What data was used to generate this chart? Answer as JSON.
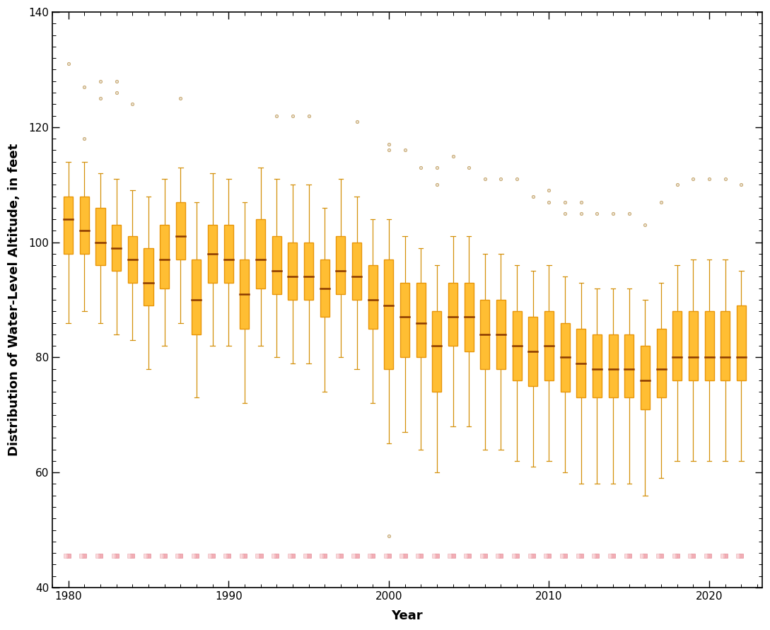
{
  "years": [
    1980,
    1981,
    1982,
    1983,
    1984,
    1985,
    1986,
    1987,
    1988,
    1989,
    1990,
    1991,
    1992,
    1993,
    1994,
    1995,
    1996,
    1997,
    1998,
    1999,
    2000,
    2001,
    2002,
    2003,
    2004,
    2005,
    2006,
    2007,
    2008,
    2009,
    2010,
    2011,
    2012,
    2013,
    2014,
    2015,
    2016,
    2017,
    2018,
    2019,
    2020,
    2021,
    2022
  ],
  "medians": [
    104,
    102,
    100,
    99,
    97,
    93,
    97,
    101,
    90,
    98,
    97,
    91,
    97,
    95,
    94,
    94,
    92,
    95,
    94,
    90,
    89,
    87,
    86,
    82,
    87,
    87,
    84,
    84,
    82,
    81,
    82,
    80,
    79,
    78,
    78,
    78,
    76,
    78,
    80,
    80,
    80,
    80,
    80
  ],
  "q1": [
    98,
    98,
    96,
    95,
    93,
    89,
    92,
    97,
    84,
    93,
    93,
    85,
    92,
    91,
    90,
    90,
    87,
    91,
    90,
    85,
    78,
    80,
    80,
    74,
    82,
    81,
    78,
    78,
    76,
    75,
    76,
    74,
    73,
    73,
    73,
    73,
    71,
    73,
    76,
    76,
    76,
    76,
    76
  ],
  "q3": [
    108,
    108,
    106,
    103,
    101,
    99,
    103,
    107,
    97,
    103,
    103,
    97,
    104,
    101,
    100,
    100,
    97,
    101,
    100,
    96,
    97,
    93,
    93,
    88,
    93,
    93,
    90,
    90,
    88,
    87,
    88,
    86,
    85,
    84,
    84,
    84,
    82,
    85,
    88,
    88,
    88,
    88,
    89
  ],
  "whisker_low": [
    86,
    88,
    86,
    84,
    83,
    78,
    82,
    86,
    73,
    82,
    82,
    72,
    82,
    80,
    79,
    79,
    74,
    80,
    78,
    72,
    65,
    67,
    64,
    60,
    68,
    68,
    64,
    64,
    62,
    61,
    62,
    60,
    58,
    58,
    58,
    58,
    56,
    59,
    62,
    62,
    62,
    62,
    62
  ],
  "whisker_high": [
    114,
    114,
    112,
    111,
    109,
    108,
    111,
    113,
    107,
    112,
    111,
    107,
    113,
    111,
    110,
    110,
    106,
    111,
    108,
    104,
    104,
    101,
    99,
    96,
    101,
    101,
    98,
    98,
    96,
    95,
    96,
    94,
    93,
    92,
    92,
    92,
    90,
    93,
    96,
    97,
    97,
    97,
    95
  ],
  "fliers_high": [
    [
      131
    ],
    [
      118,
      127
    ],
    [
      125,
      128
    ],
    [
      126,
      128
    ],
    [
      124
    ],
    [],
    [],
    [
      125
    ],
    [],
    [],
    [],
    [],
    [],
    [
      122
    ],
    [
      122
    ],
    [
      122
    ],
    [],
    [],
    [
      121
    ],
    [],
    [
      116,
      117
    ],
    [
      116
    ],
    [
      113
    ],
    [
      110,
      113
    ],
    [
      115
    ],
    [
      113
    ],
    [
      111
    ],
    [
      111
    ],
    [
      111
    ],
    [
      108
    ],
    [
      107,
      109
    ],
    [
      105,
      107
    ],
    [
      105,
      107
    ],
    [
      105
    ],
    [
      105
    ],
    [
      105
    ],
    [
      103
    ],
    [
      107
    ],
    [
      110
    ],
    [
      111
    ],
    [
      111
    ],
    [
      111
    ],
    [
      110
    ]
  ],
  "fliers_low": [
    [],
    [],
    [],
    [],
    [],
    [],
    [],
    [],
    [],
    [],
    [],
    [],
    [],
    [],
    [],
    [],
    [],
    [],
    [],
    [],
    [
      49
    ],
    [],
    [],
    [],
    [],
    [],
    [],
    [],
    [],
    [],
    [],
    [],
    [],
    [],
    [],
    [],
    [],
    [],
    [],
    [],
    [],
    [],
    []
  ],
  "ylim": [
    40,
    140
  ],
  "xlim": [
    1979.2,
    2023.3
  ],
  "ylabel": "Distribution of Water-Level Altitude, in feet",
  "xlabel": "Year",
  "box_face_color": "#FFBE33",
  "box_edge_color": "#E8960A",
  "median_color": "#8B3A00",
  "whisker_color": "#D4900A",
  "flier_face_color": "#E8E0D0",
  "flier_edge_color": "#C8A870",
  "pink_dots_y": 45.5,
  "background_color": "#FFFFFF",
  "tick_fontsize": 11,
  "label_fontsize": 13,
  "box_width": 0.58
}
